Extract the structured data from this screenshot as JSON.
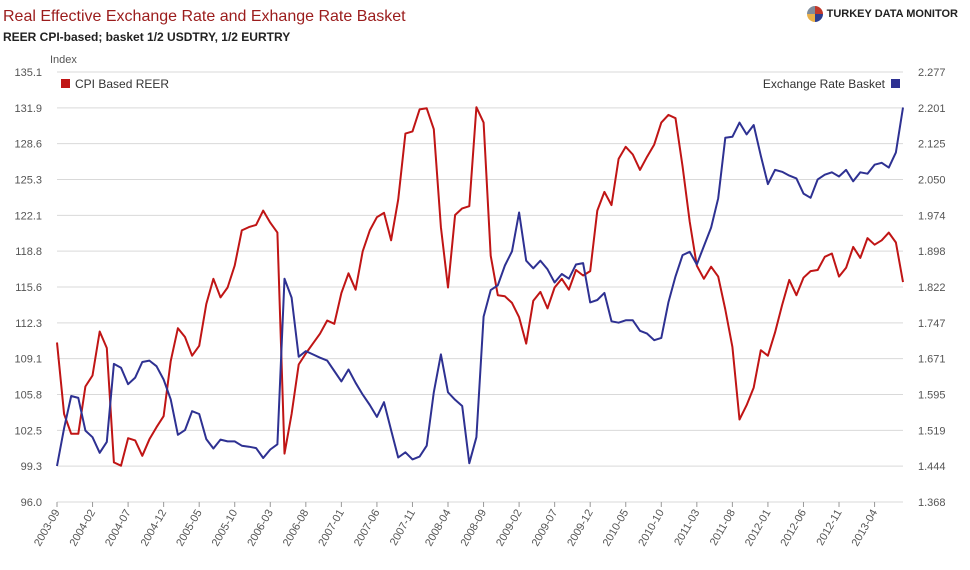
{
  "header": {
    "title": "Real Effective Exchange Rate and Exhange Rate Basket",
    "subtitle": "REER CPI-based; basket 1/2 USDTRY, 1/2 EURTRY",
    "brand": "TURKEY DATA MONITOR",
    "brand_icon": "pie-chart-logo-icon"
  },
  "chart_data": {
    "type": "line",
    "ylabel": "Index",
    "grid": true,
    "legend_placement": "top",
    "y_left_ticks": [
      "96.0",
      "99.3",
      "102.5",
      "105.8",
      "109.1",
      "112.3",
      "115.6",
      "118.8",
      "122.1",
      "125.3",
      "128.6",
      "131.9",
      "135.1"
    ],
    "y_left_range": [
      96.0,
      135.1
    ],
    "y_right_ticks": [
      "1.368",
      "1.444",
      "1.519",
      "1.595",
      "1.671",
      "1.747",
      "1.822",
      "1.898",
      "1.974",
      "2.050",
      "2.125",
      "2.201",
      "2.277"
    ],
    "y_right_range": [
      1.368,
      2.277
    ],
    "x_tick_labels": [
      "2003-09",
      "2004-02",
      "2004-07",
      "2004-12",
      "2005-05",
      "2005-10",
      "2006-03",
      "2006-08",
      "2007-01",
      "2007-06",
      "2007-11",
      "2008-04",
      "2008-09",
      "2009-02",
      "2009-07",
      "2009-12",
      "2010-05",
      "2010-10",
      "2011-03",
      "2011-08",
      "2012-01",
      "2012-06",
      "2012-11",
      "2013-04"
    ],
    "series": [
      {
        "name": "CPI Based REER",
        "axis": "left",
        "color": "#c01515",
        "values": [
          110.5,
          104.0,
          102.2,
          102.2,
          106.5,
          107.5,
          111.5,
          110.0,
          99.6,
          99.3,
          101.8,
          101.6,
          100.2,
          101.7,
          102.8,
          103.8,
          108.8,
          111.8,
          111.0,
          109.3,
          110.2,
          114.0,
          116.3,
          114.6,
          115.5,
          117.5,
          120.7,
          121.0,
          121.2,
          122.5,
          121.4,
          120.5,
          100.4,
          104.0,
          108.5,
          109.5,
          110.4,
          111.3,
          112.5,
          112.2,
          115.0,
          116.8,
          115.3,
          118.8,
          120.7,
          121.9,
          122.3,
          119.8,
          123.5,
          129.5,
          129.7,
          131.7,
          131.8,
          129.9,
          121.0,
          115.5,
          122.1,
          122.7,
          122.9,
          131.9,
          130.5,
          118.4,
          114.8,
          114.7,
          114.1,
          112.8,
          110.4,
          114.3,
          115.1,
          113.6,
          115.5,
          116.3,
          115.3,
          117.1,
          116.6,
          117.0,
          122.5,
          124.2,
          123.0,
          127.2,
          128.3,
          127.6,
          126.2,
          127.4,
          128.5,
          130.5,
          131.2,
          130.9,
          126.5,
          121.5,
          117.5,
          116.3,
          117.4,
          116.5,
          113.5,
          110.1,
          103.5,
          104.8,
          106.4,
          109.8,
          109.3,
          111.4,
          113.9,
          116.2,
          114.8,
          116.4,
          117.0,
          117.1,
          118.3,
          118.6,
          116.5,
          117.3,
          119.2,
          118.2,
          120.0,
          119.4,
          119.8,
          120.5,
          119.6,
          116.0
        ]
      },
      {
        "name": "Exchange Rate Basket",
        "axis": "right",
        "color": "#2e3192",
        "values": [
          1.444,
          1.524,
          1.592,
          1.588,
          1.519,
          1.505,
          1.472,
          1.495,
          1.66,
          1.652,
          1.617,
          1.631,
          1.664,
          1.667,
          1.655,
          1.627,
          1.585,
          1.51,
          1.52,
          1.56,
          1.554,
          1.501,
          1.481,
          1.5,
          1.496,
          1.496,
          1.487,
          1.485,
          1.482,
          1.461,
          1.479,
          1.49,
          1.84,
          1.8,
          1.675,
          1.687,
          1.68,
          1.673,
          1.667,
          1.645,
          1.623,
          1.648,
          1.62,
          1.595,
          1.573,
          1.548,
          1.579,
          1.52,
          1.462,
          1.473,
          1.458,
          1.464,
          1.487,
          1.6,
          1.68,
          1.6,
          1.584,
          1.571,
          1.45,
          1.505,
          1.76,
          1.816,
          1.826,
          1.868,
          1.898,
          1.98,
          1.878,
          1.862,
          1.878,
          1.86,
          1.832,
          1.85,
          1.84,
          1.87,
          1.873,
          1.79,
          1.795,
          1.81,
          1.75,
          1.747,
          1.752,
          1.752,
          1.73,
          1.724,
          1.71,
          1.715,
          1.79,
          1.845,
          1.89,
          1.897,
          1.87,
          1.909,
          1.948,
          2.01,
          2.138,
          2.14,
          2.17,
          2.145,
          2.165,
          2.1,
          2.04,
          2.07,
          2.066,
          2.058,
          2.052,
          2.02,
          2.011,
          2.05,
          2.06,
          2.065,
          2.056,
          2.07,
          2.046,
          2.065,
          2.062,
          2.081,
          2.085,
          2.075,
          2.107,
          2.202
        ]
      }
    ]
  }
}
